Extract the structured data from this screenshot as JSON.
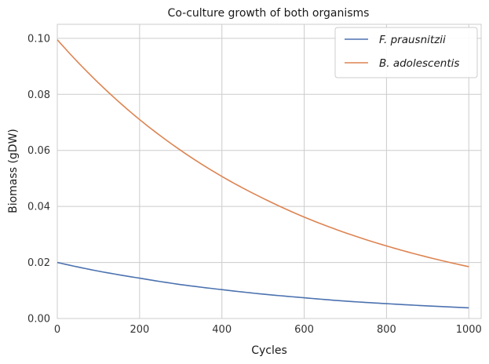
{
  "chart_data": {
    "type": "line",
    "title": "Co-culture growth of both organisms",
    "xlabel": "Cycles",
    "ylabel": "Biomass (gDW)",
    "xlim": [
      0,
      1030
    ],
    "ylim": [
      0,
      0.105
    ],
    "xticks": [
      0,
      200,
      400,
      600,
      800,
      1000
    ],
    "yticks": [
      0.0,
      0.02,
      0.04,
      0.06,
      0.08,
      0.1
    ],
    "xtick_labels": [
      "0",
      "200",
      "400",
      "600",
      "800",
      "1000"
    ],
    "ytick_labels": [
      "0.00",
      "0.02",
      "0.04",
      "0.06",
      "0.08",
      "0.10"
    ],
    "grid": true,
    "legend_position": "top-right",
    "x": [
      0,
      100,
      200,
      300,
      400,
      500,
      600,
      700,
      800,
      900,
      1000
    ],
    "series": [
      {
        "name": "F. prausnitzii",
        "color": "#4c72b0",
        "values": [
          0.02,
          0.0169,
          0.0144,
          0.0121,
          0.0103,
          0.0087,
          0.0074,
          0.0062,
          0.0053,
          0.0045,
          0.0038
        ]
      },
      {
        "name": "B. adolescentis",
        "color": "#dd8452",
        "values": [
          0.0995,
          0.0841,
          0.071,
          0.06,
          0.0507,
          0.0429,
          0.0362,
          0.0306,
          0.0259,
          0.0219,
          0.0185
        ]
      }
    ]
  }
}
